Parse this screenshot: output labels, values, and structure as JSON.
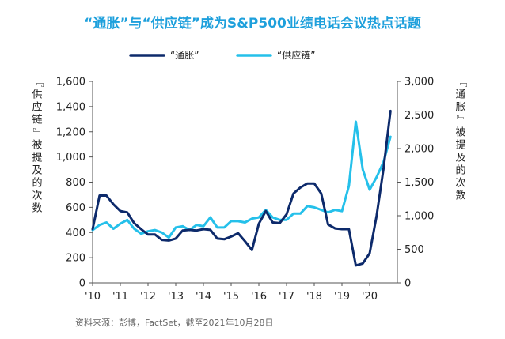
{
  "chart_data": {
    "type": "line",
    "title": "“通胀”与“供应链”成为S&P500业绩电话会议热点话题",
    "source": "资料来源：彭博，FactSet，截至2021年10月28日",
    "ylabel_left": "『供应链』被提及的次数",
    "ylabel_right": "『通胀』被提及的次数",
    "ylim_left": [
      0,
      1600
    ],
    "ylim_right": [
      0,
      3000
    ],
    "yticks_left": [
      "0",
      "200",
      "400",
      "600",
      "800",
      "1,000",
      "1,200",
      "1,400",
      "1,600"
    ],
    "yticks_right": [
      "0",
      "500",
      "1,000",
      "1,500",
      "2,000",
      "2,500",
      "3,000"
    ],
    "xlim": [
      2010.0,
      2021.0
    ],
    "xticks": [
      {
        "x": 2010,
        "label": "'10"
      },
      {
        "x": 2011,
        "label": "'11"
      },
      {
        "x": 2012,
        "label": "'12"
      },
      {
        "x": 2013,
        "label": "'13"
      },
      {
        "x": 2014,
        "label": "'14"
      },
      {
        "x": 2015,
        "label": "'15"
      },
      {
        "x": 2016,
        "label": "'16"
      },
      {
        "x": 2017,
        "label": "'17"
      },
      {
        "x": 2018,
        "label": "'18"
      },
      {
        "x": 2019,
        "label": "'19"
      },
      {
        "x": 2020,
        "label": "'20"
      }
    ],
    "legend_position": "top",
    "series": [
      {
        "name": "“通胀”",
        "axis": "right",
        "color": "#0d2a6b",
        "points": [
          [
            2010.0,
            800
          ],
          [
            2010.25,
            1300
          ],
          [
            2010.5,
            1300
          ],
          [
            2010.75,
            1170
          ],
          [
            2011.0,
            1070
          ],
          [
            2011.25,
            1050
          ],
          [
            2011.5,
            890
          ],
          [
            2011.75,
            800
          ],
          [
            2012.0,
            720
          ],
          [
            2012.25,
            720
          ],
          [
            2012.5,
            640
          ],
          [
            2012.75,
            630
          ],
          [
            2013.0,
            660
          ],
          [
            2013.25,
            780
          ],
          [
            2013.5,
            790
          ],
          [
            2013.75,
            780
          ],
          [
            2014.0,
            800
          ],
          [
            2014.25,
            790
          ],
          [
            2014.5,
            660
          ],
          [
            2014.75,
            650
          ],
          [
            2015.0,
            690
          ],
          [
            2015.25,
            740
          ],
          [
            2015.5,
            620
          ],
          [
            2015.75,
            490
          ],
          [
            2016.0,
            880
          ],
          [
            2016.25,
            1070
          ],
          [
            2016.5,
            900
          ],
          [
            2016.75,
            890
          ],
          [
            2017.0,
            1020
          ],
          [
            2017.25,
            1330
          ],
          [
            2017.5,
            1420
          ],
          [
            2017.75,
            1480
          ],
          [
            2018.0,
            1480
          ],
          [
            2018.25,
            1330
          ],
          [
            2018.5,
            870
          ],
          [
            2018.75,
            810
          ],
          [
            2019.0,
            800
          ],
          [
            2019.25,
            800
          ],
          [
            2019.5,
            260
          ],
          [
            2019.75,
            290
          ],
          [
            2020.0,
            440
          ],
          [
            2020.25,
            1000
          ],
          [
            2020.5,
            1700
          ],
          [
            2020.75,
            2560
          ]
        ]
      },
      {
        "name": "“供应链”",
        "axis": "left",
        "color": "#25c0ea",
        "points": [
          [
            2010.0,
            420
          ],
          [
            2010.25,
            460
          ],
          [
            2010.5,
            480
          ],
          [
            2010.75,
            430
          ],
          [
            2011.0,
            470
          ],
          [
            2011.25,
            500
          ],
          [
            2011.5,
            430
          ],
          [
            2011.75,
            390
          ],
          [
            2012.0,
            410
          ],
          [
            2012.25,
            420
          ],
          [
            2012.5,
            400
          ],
          [
            2012.75,
            360
          ],
          [
            2013.0,
            440
          ],
          [
            2013.25,
            450
          ],
          [
            2013.5,
            420
          ],
          [
            2013.75,
            460
          ],
          [
            2014.0,
            450
          ],
          [
            2014.25,
            520
          ],
          [
            2014.5,
            440
          ],
          [
            2014.75,
            440
          ],
          [
            2015.0,
            490
          ],
          [
            2015.25,
            490
          ],
          [
            2015.5,
            480
          ],
          [
            2015.75,
            510
          ],
          [
            2016.0,
            520
          ],
          [
            2016.25,
            580
          ],
          [
            2016.5,
            520
          ],
          [
            2016.75,
            500
          ],
          [
            2017.0,
            500
          ],
          [
            2017.25,
            550
          ],
          [
            2017.5,
            550
          ],
          [
            2017.75,
            610
          ],
          [
            2018.0,
            600
          ],
          [
            2018.25,
            580
          ],
          [
            2018.5,
            560
          ],
          [
            2018.75,
            580
          ],
          [
            2019.0,
            570
          ],
          [
            2019.25,
            770
          ],
          [
            2019.5,
            1280
          ],
          [
            2019.75,
            900
          ],
          [
            2020.0,
            740
          ],
          [
            2020.25,
            840
          ],
          [
            2020.5,
            960
          ],
          [
            2020.75,
            1160
          ]
        ]
      }
    ]
  }
}
